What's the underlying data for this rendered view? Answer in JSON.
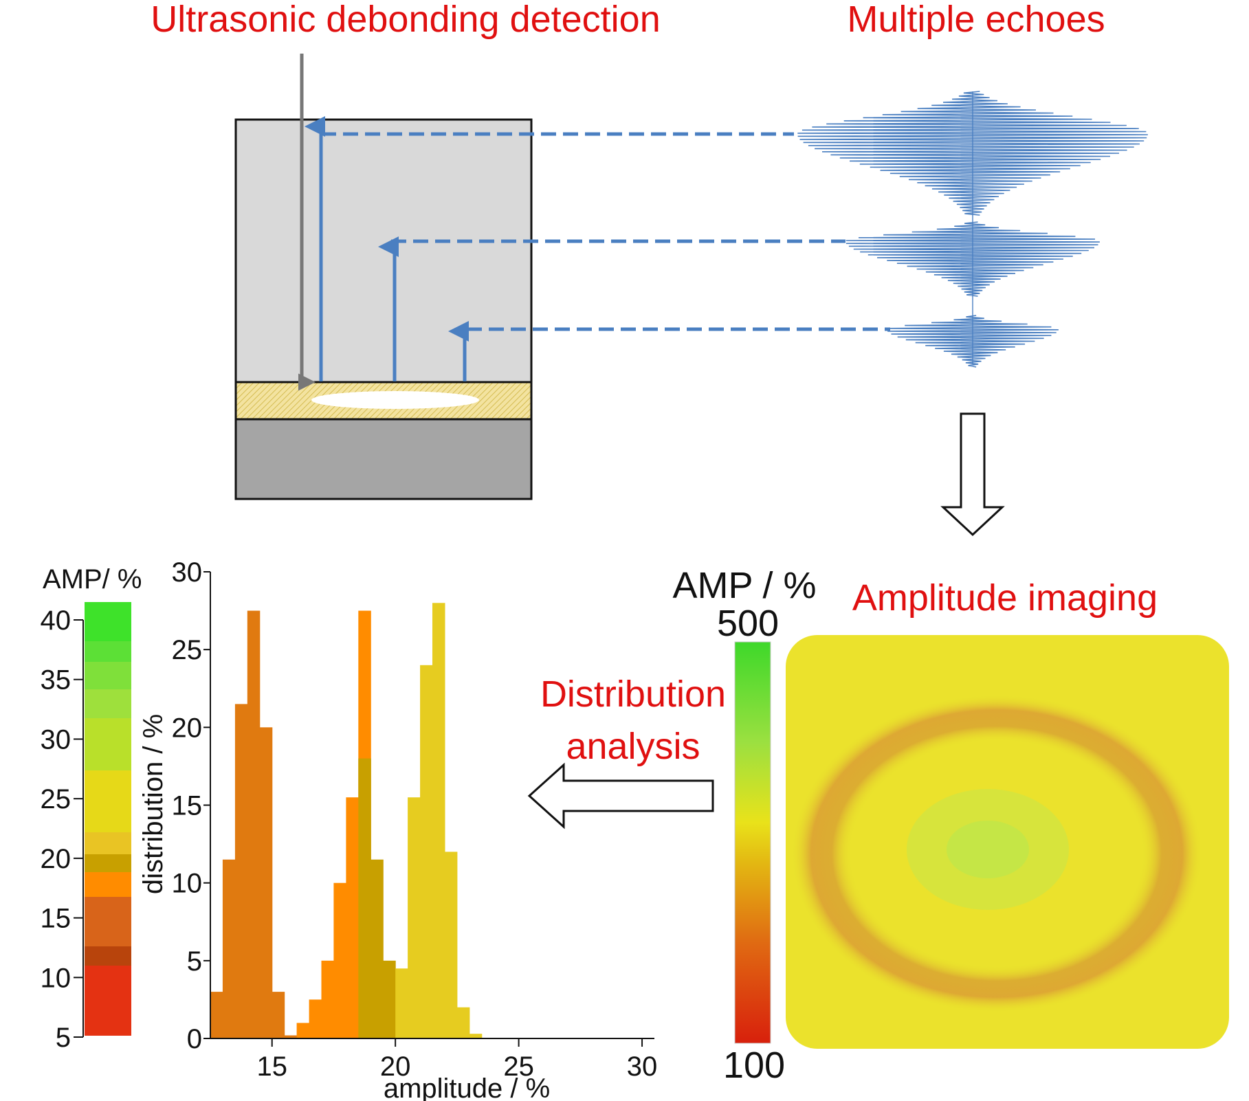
{
  "titles": {
    "detection": "Ultrasonic debonding detection",
    "echoes": "Multiple echoes",
    "imaging": "Amplitude imaging",
    "distribution_line1": "Distribution",
    "distribution_line2": "analysis"
  },
  "imaging_colorbar": {
    "title": "AMP / %",
    "max_label": "500",
    "min_label": "100"
  },
  "histogram_colorbar": {
    "title": "AMP/ %",
    "ticks": [
      "40",
      "35",
      "30",
      "25",
      "20",
      "15",
      "10",
      "5"
    ]
  },
  "colors": {
    "title_red": "#e01010",
    "arrow_blue": "#4a7fc1",
    "specimen_light": "#d9d9d9",
    "specimen_dark": "#a5a5a5",
    "adhesive": "#f3e3a0"
  },
  "chart_data": {
    "type": "bar",
    "xlabel": "amplitude / %",
    "ylabel": "distribution / %",
    "xlim": [
      12.5,
      30.5
    ],
    "ylim": [
      0,
      30
    ],
    "xticks": [
      15,
      20,
      25,
      30
    ],
    "yticks": [
      0,
      5,
      10,
      15,
      20,
      25,
      30
    ],
    "bin_width": 0.5,
    "series": [
      {
        "color": "#e07a10",
        "x": [
          12.75,
          13.25,
          13.75,
          14.25,
          14.75,
          15.25,
          15.75,
          16.25
        ],
        "values": [
          3,
          11.5,
          21.5,
          27.5,
          20,
          3,
          0.2,
          0
        ]
      },
      {
        "color": "#ff8c00",
        "x": [
          16.25,
          16.75,
          17.25,
          17.75,
          18.25,
          18.75,
          19.25,
          19.75
        ],
        "values": [
          1,
          2.5,
          5,
          10,
          15.5,
          27.5,
          0,
          0
        ]
      },
      {
        "color": "#c8a000",
        "x": [
          18.75,
          19.25,
          19.75
        ],
        "values": [
          18,
          11.5,
          5
        ]
      },
      {
        "color": "#e6cc20",
        "x": [
          20.25,
          20.75,
          21.25,
          21.75,
          22.25,
          22.75,
          23.25
        ],
        "values": [
          4.5,
          15.5,
          24,
          28,
          12,
          2,
          0.3
        ]
      }
    ]
  }
}
